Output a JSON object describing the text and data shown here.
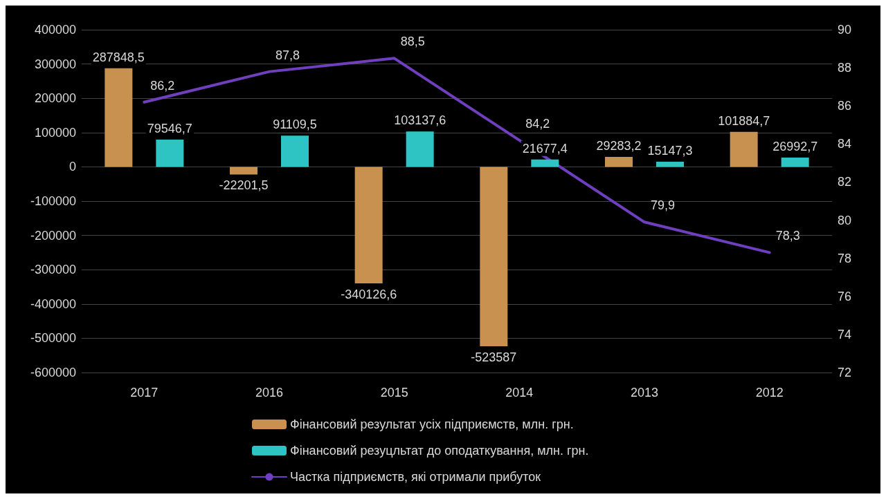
{
  "chart_data": {
    "type": "bar",
    "categories": [
      "2017",
      "2016",
      "2015",
      "2014",
      "2013",
      "2012"
    ],
    "series": [
      {
        "name": "Фінансовий результат усіх підприємств, млн. грн.",
        "color": "#c8914f",
        "values": [
          287848.5,
          -22201.5,
          -340126.6,
          -523587,
          29283.2,
          101884.7
        ],
        "value_labels": [
          "287848,5",
          "-22201,5",
          "-340126,6",
          "-523587",
          "29283,2",
          "101884,7"
        ]
      },
      {
        "name": "Фінансовий резуцльтат до оподаткування, млн. грн.",
        "color": "#2ec4c4",
        "values": [
          79546.7,
          91109.5,
          103137.6,
          21677.4,
          15147.3,
          26992.7
        ],
        "value_labels": [
          "79546,7",
          "91109,5",
          "103137,6",
          "21677,4",
          "15147,3",
          "26992,7"
        ]
      },
      {
        "name": "Частка підприємств, які отримали прибуток",
        "type": "line",
        "axis": "y2",
        "color": "#6f3fc0",
        "values": [
          86.2,
          87.8,
          88.5,
          84.2,
          79.9,
          78.3
        ],
        "value_labels": [
          "86,2",
          "87,8",
          "88,5",
          "84,2",
          "79,9",
          "78,3"
        ]
      }
    ],
    "ylim": [
      -600000,
      400000
    ],
    "yticks": [
      -600000,
      -500000,
      -400000,
      -300000,
      -200000,
      -100000,
      0,
      100000,
      200000,
      300000,
      400000
    ],
    "y2lim": [
      72,
      90
    ],
    "y2ticks": [
      72,
      74,
      76,
      78,
      80,
      82,
      84,
      86,
      88,
      90
    ],
    "grid": "y",
    "legend": "bottom",
    "marker": "none",
    "line_style": "solid"
  }
}
